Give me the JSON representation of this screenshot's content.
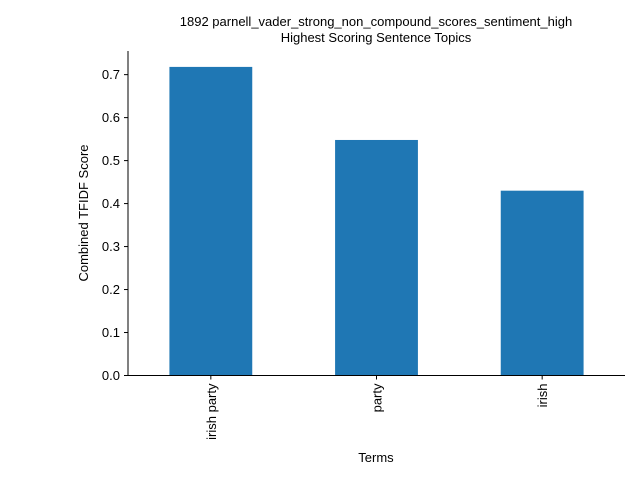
{
  "chart_data": {
    "type": "bar",
    "title": "1892 parnell_vader_strong_non_compound_scores_sentiment_high",
    "subtitle": "Highest Scoring Sentence Topics",
    "xlabel": "Terms",
    "ylabel": "Combined TFIDF Score",
    "categories": [
      "irish party",
      "party",
      "irish"
    ],
    "values": [
      0.718,
      0.548,
      0.43
    ],
    "ylim": [
      0,
      0.755
    ],
    "yticks": [
      0.0,
      0.1,
      0.2,
      0.3,
      0.4,
      0.5,
      0.6,
      0.7
    ],
    "ytick_labels": [
      "0.0",
      "0.1",
      "0.2",
      "0.3",
      "0.4",
      "0.5",
      "0.6",
      "0.7"
    ],
    "bar_color": "#1f77b4",
    "grid": false,
    "legend": "none"
  }
}
